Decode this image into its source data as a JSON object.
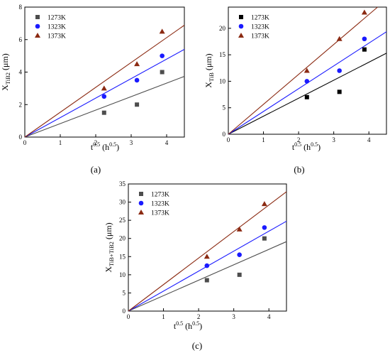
{
  "chart_data": [
    {
      "type": "scatter",
      "panel_label": "(a)",
      "ylabel": {
        "main": "X",
        "sub": "TiB2",
        "unit": " (μm)"
      },
      "xlabel": {
        "main": "t",
        "sup": "0.5",
        "unit_open": "  (h",
        "unit_sup": "0.5",
        "unit_close": ")"
      },
      "xlim": [
        0,
        4.5
      ],
      "ylim": [
        0,
        8
      ],
      "xticks": [
        0,
        1,
        2,
        3,
        4
      ],
      "yticks": [
        0,
        2,
        4,
        6,
        8
      ],
      "legend_position": "top-left",
      "series": [
        {
          "name": "1273K",
          "marker": "square",
          "color": "#4d4d4d",
          "x": [
            2.236,
            3.162,
            3.873
          ],
          "y": [
            1.5,
            2.0,
            4.0
          ],
          "fit_slope": 0.83
        },
        {
          "name": "1323K",
          "marker": "circle",
          "color": "#1a1aff",
          "x": [
            2.236,
            3.162,
            3.873
          ],
          "y": [
            2.5,
            3.5,
            5.0
          ],
          "fit_slope": 1.2
        },
        {
          "name": "1373K",
          "marker": "triangle",
          "color": "#8b2a12",
          "x": [
            2.236,
            3.162,
            3.873
          ],
          "y": [
            3.0,
            4.5,
            6.5
          ],
          "fit_slope": 1.53
        }
      ]
    },
    {
      "type": "scatter",
      "panel_label": "(b)",
      "ylabel": {
        "main": "X",
        "sub": "TiB",
        "unit": " (μm)"
      },
      "xlabel": {
        "main": "t",
        "sup": "0.5",
        "unit_open": "  (h",
        "unit_sup": "0.5",
        "unit_close": ")"
      },
      "xlim": [
        0,
        4.5
      ],
      "ylim": [
        0,
        24
      ],
      "xticks": [
        0,
        1,
        2,
        3,
        4
      ],
      "yticks": [
        0,
        5,
        10,
        15,
        20
      ],
      "legend_position": "top-left",
      "series": [
        {
          "name": "1273K",
          "marker": "square",
          "color": "#000000",
          "x": [
            2.236,
            3.162,
            3.873
          ],
          "y": [
            7,
            8,
            16
          ],
          "fit_slope": 3.4
        },
        {
          "name": "1323K",
          "marker": "circle",
          "color": "#1a1aff",
          "x": [
            2.236,
            3.162,
            3.873
          ],
          "y": [
            10,
            12,
            18
          ],
          "fit_slope": 4.3
        },
        {
          "name": "1373K",
          "marker": "triangle",
          "color": "#8b2a12",
          "x": [
            2.236,
            3.162,
            3.873
          ],
          "y": [
            12,
            18,
            23
          ],
          "fit_slope": 5.65
        }
      ]
    },
    {
      "type": "scatter",
      "panel_label": "(c)",
      "ylabel": {
        "main": "X",
        "sub": "TiB+TiB2",
        "unit": " (μm)"
      },
      "xlabel": {
        "main": "t",
        "sup": "0.5",
        "unit_open": "  (h",
        "unit_sup": "0.5",
        "unit_close": ")"
      },
      "xlim": [
        0,
        4.5
      ],
      "ylim": [
        0,
        35
      ],
      "xticks": [
        0,
        1,
        2,
        3,
        4
      ],
      "yticks": [
        0,
        5,
        10,
        15,
        20,
        25,
        30,
        35
      ],
      "legend_position": "top-left",
      "series": [
        {
          "name": "1273K",
          "marker": "square",
          "color": "#4d4d4d",
          "x": [
            2.236,
            3.162,
            3.873
          ],
          "y": [
            8.5,
            10,
            20
          ],
          "fit_slope": 4.25
        },
        {
          "name": "1323K",
          "marker": "circle",
          "color": "#1a1aff",
          "x": [
            2.236,
            3.162,
            3.873
          ],
          "y": [
            12.5,
            15.5,
            23
          ],
          "fit_slope": 5.5
        },
        {
          "name": "1373K",
          "marker": "triangle",
          "color": "#8b2a12",
          "x": [
            2.236,
            3.162,
            3.873
          ],
          "y": [
            15,
            22.5,
            29.5
          ],
          "fit_slope": 7.3
        }
      ]
    }
  ]
}
